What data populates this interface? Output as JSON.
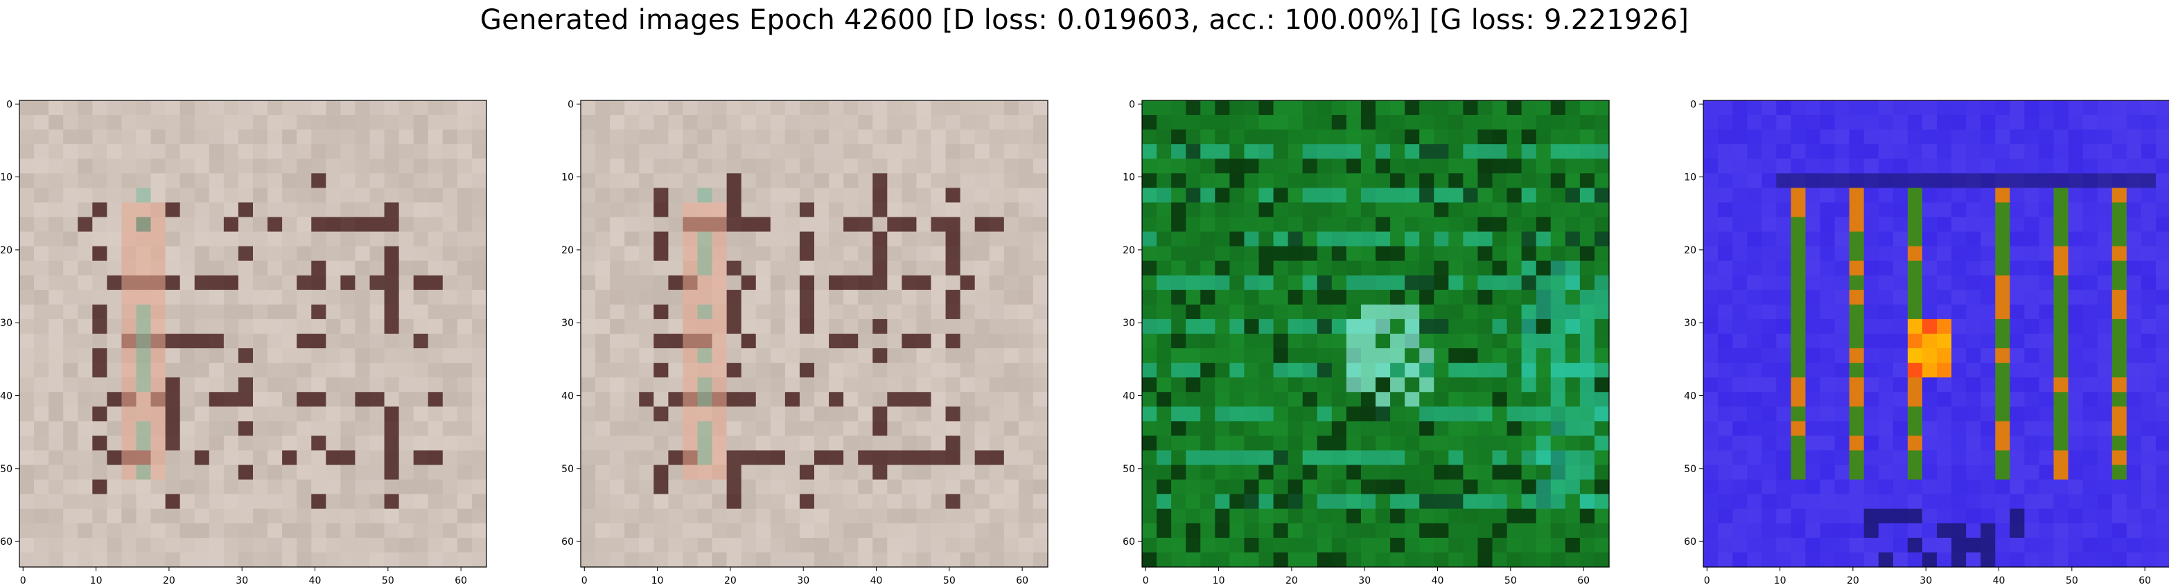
{
  "title": "Generated images Epoch 42600 [D loss: 0.019603, acc.: 100.00%] [G loss: 9.221926]",
  "chart_data": [
    {
      "type": "heatmap",
      "panel": 1,
      "description": "generated 64x64 RGB sample, beige/pink maze-like pattern",
      "palette": {
        "base": "#d8ccc4",
        "grid": "#b5a79c",
        "dark": "#3a1010",
        "accent": "#e8a890",
        "accent2": "#6fb89a"
      },
      "x_ticks": [
        "0",
        "10",
        "20",
        "30",
        "40",
        "50",
        "60"
      ],
      "y_ticks": [
        "0",
        "10",
        "20",
        "30",
        "40",
        "50",
        "60"
      ],
      "xlim": [
        -0.5,
        63.5
      ],
      "ylim": [
        63.5,
        -0.5
      ]
    },
    {
      "type": "heatmap",
      "panel": 2,
      "description": "generated 64x64 RGB sample, beige/pink maze-like pattern",
      "palette": {
        "base": "#d8ccc4",
        "grid": "#b5a79c",
        "dark": "#3a1010",
        "accent": "#e8a890",
        "accent2": "#6fb89a"
      },
      "x_ticks": [
        "0",
        "10",
        "20",
        "30",
        "40",
        "50",
        "60"
      ],
      "y_ticks": [
        "0",
        "10",
        "20",
        "30",
        "40",
        "50",
        "60"
      ],
      "xlim": [
        -0.5,
        63.5
      ],
      "ylim": [
        63.5,
        -0.5
      ]
    },
    {
      "type": "heatmap",
      "panel": 3,
      "description": "generated 64x64 RGB sample, green/cyan grid pattern",
      "palette": {
        "base": "#1a8a2a",
        "grid": "#0d5a16",
        "dark": "#062608",
        "accent": "#2fd6c0",
        "accent2": "#8ff0e0"
      },
      "x_ticks": [
        "0",
        "10",
        "20",
        "30",
        "40",
        "50",
        "60"
      ],
      "y_ticks": [
        "0",
        "10",
        "20",
        "30",
        "40",
        "50",
        "60"
      ],
      "xlim": [
        -0.5,
        63.5
      ],
      "ylim": [
        63.5,
        -0.5
      ]
    },
    {
      "type": "heatmap",
      "panel": 4,
      "description": "generated 64x64 RGB sample, blue/violet background with vertical green-orange bars",
      "palette": {
        "base": "#3c2ae8",
        "grid": "#5a4af0",
        "dark": "#1a1670",
        "accent": "#2c8a20",
        "accent2": "#f07a10"
      },
      "x_ticks": [
        "0",
        "10",
        "20",
        "30",
        "40",
        "50",
        "60"
      ],
      "y_ticks": [
        "0",
        "10",
        "20",
        "30",
        "40",
        "50",
        "60"
      ],
      "xlim": [
        -0.5,
        63.5
      ],
      "ylim": [
        63.5,
        -0.5
      ]
    }
  ]
}
